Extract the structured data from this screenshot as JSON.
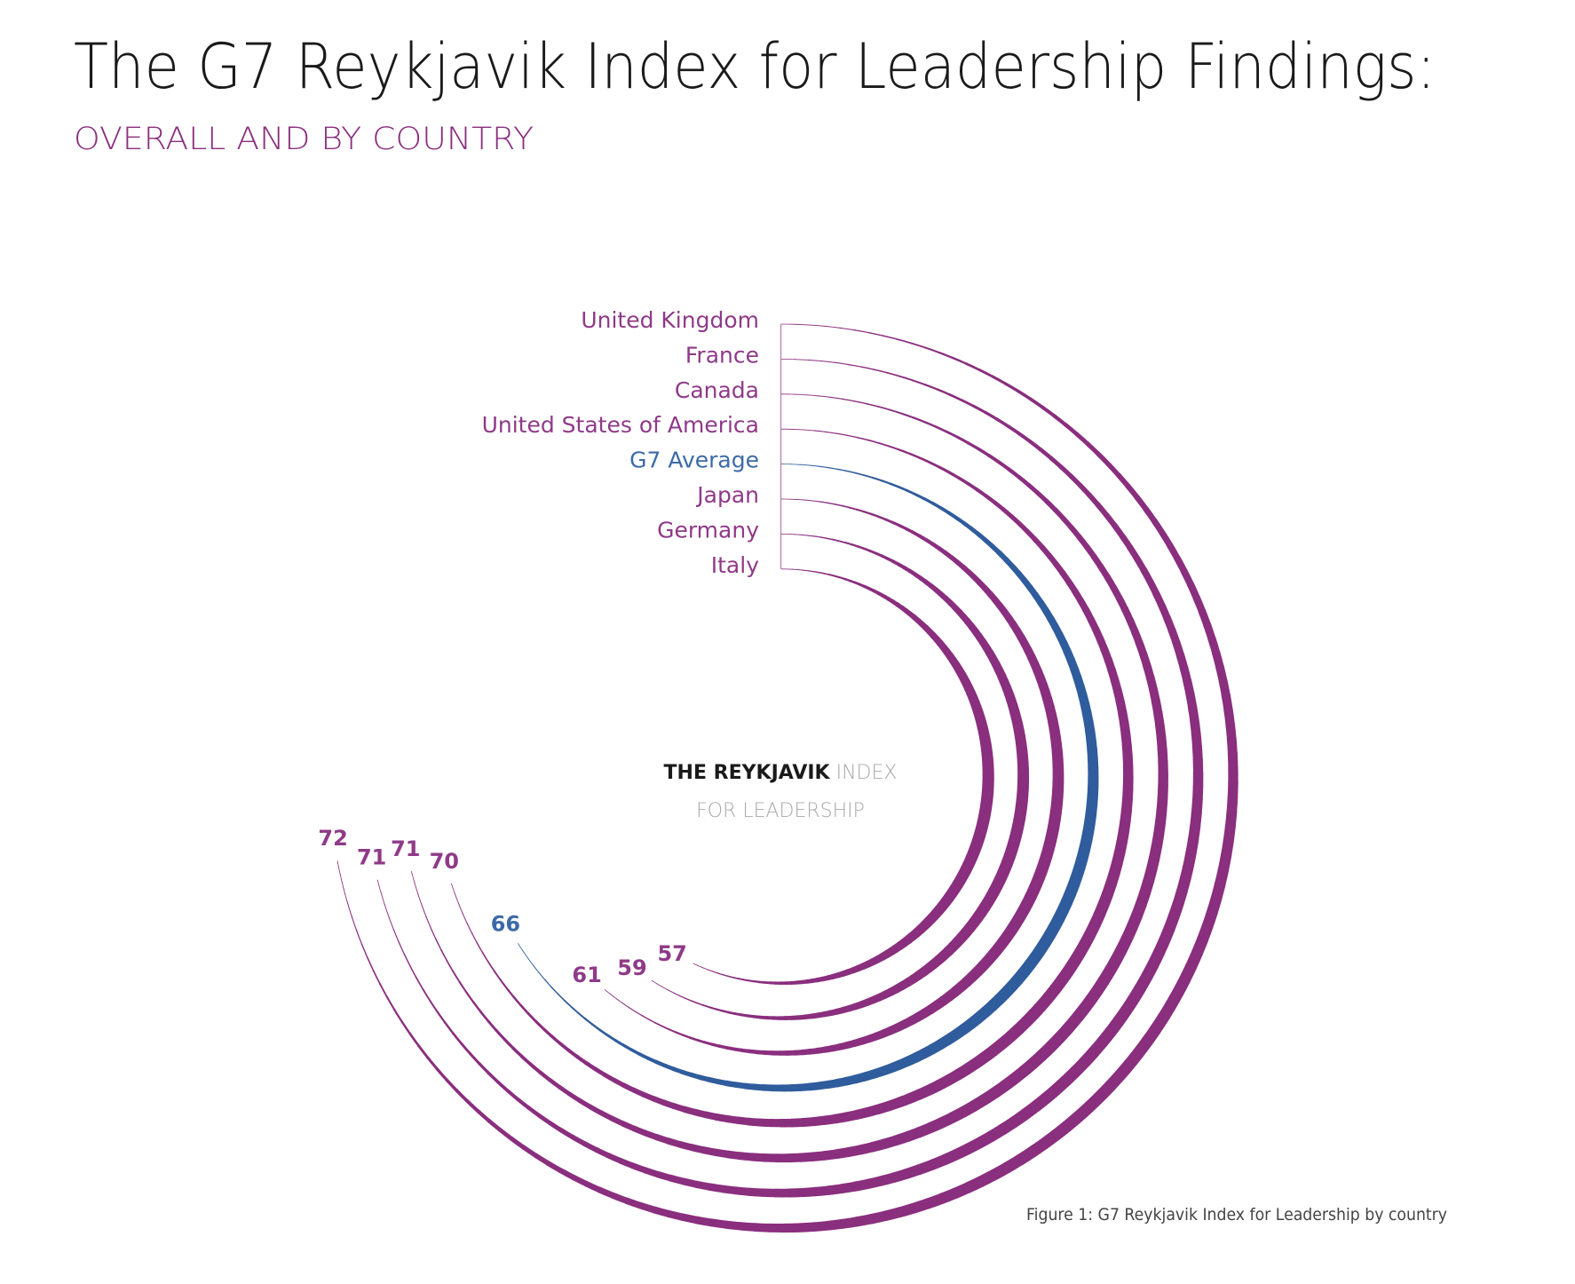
{
  "header": {
    "title": "The G7 Reykjavik Index for Leadership Findings:",
    "subtitle": "OVERALL AND BY COUNTRY"
  },
  "center_label": {
    "line1_bold": "THE REYKJAVIK",
    "line1_light": " INDEX",
    "line2": "FOR LEADERSHIP"
  },
  "caption": "Figure 1: G7 Reykjavik Index for Leadership by country",
  "colors": {
    "country": "#8A2E7E",
    "country_label": "#8F3A88",
    "average": "#2F5C9C",
    "average_label": "#3D6AA8",
    "title": "#1a1a1a",
    "subtitle": "#8A2E7E"
  },
  "chart_data": {
    "type": "radial-bar",
    "title": "The G7 Reykjavik Index for Leadership Findings:",
    "subtitle": "OVERALL AND BY COUNTRY",
    "scale_max": 100,
    "direction": "clockwise from top",
    "categories": [
      "United Kingdom",
      "France",
      "Canada",
      "United States of America",
      "G7 Average",
      "Japan",
      "Germany",
      "Italy"
    ],
    "values": [
      72,
      71,
      71,
      70,
      66,
      61,
      59,
      57
    ],
    "highlight": [
      "country",
      "country",
      "country",
      "country",
      "average",
      "country",
      "country",
      "country"
    ],
    "annotations": [
      "THE REYKJAVIK INDEX FOR LEADERSHIP"
    ],
    "caption": "Figure 1: G7 Reykjavik Index for Leadership by country",
    "legend": "none",
    "grid": false
  }
}
